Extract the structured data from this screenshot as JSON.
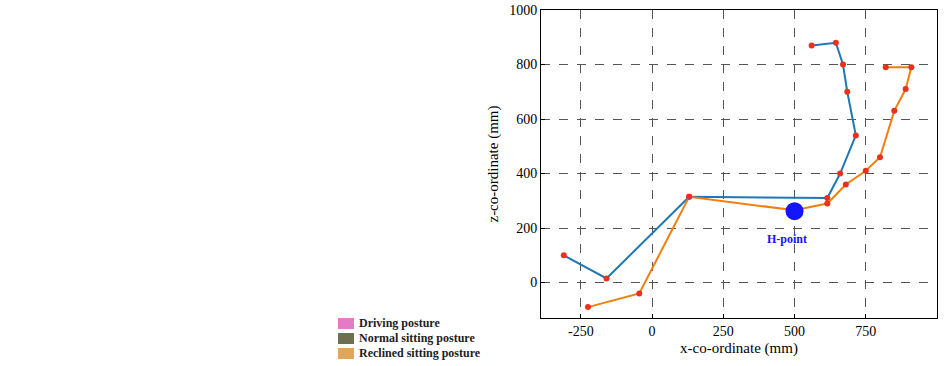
{
  "figure_legend": {
    "entries": [
      {
        "label": "Driving posture",
        "color": "#e27cc4"
      },
      {
        "label": "Normal sitting posture",
        "color": "#6e6e50"
      },
      {
        "label": "Reclined sitting posture",
        "color": "#e3a55a"
      }
    ]
  },
  "chart_data": {
    "type": "line",
    "x_label": "x-co-ordinate (mm)",
    "y_label": "z-co-ordinate (mm)",
    "xlim": [
      -390,
      1000
    ],
    "ylim": [
      -130,
      1000
    ],
    "xticks": [
      -250,
      0,
      250,
      500,
      750
    ],
    "yticks": [
      0,
      200,
      400,
      600,
      800,
      1000
    ],
    "grid": true,
    "series": [
      {
        "color": "#1f77b4",
        "marker": "circle",
        "x": [
          -310,
          -160,
          130,
          615,
          660,
          715,
          685,
          670,
          645,
          560
        ],
        "values": [
          100,
          15,
          315,
          310,
          400,
          540,
          700,
          800,
          880,
          870
        ]
      },
      {
        "color": "#f07f10",
        "marker": "circle",
        "x": [
          -225,
          -45,
          130,
          500,
          615,
          680,
          750,
          800,
          850,
          890,
          910,
          820
        ],
        "values": [
          -90,
          -40,
          315,
          265,
          290,
          360,
          410,
          460,
          630,
          710,
          790,
          790
        ]
      },
      {
        "type": "scatter",
        "color": "#1414ff",
        "marker": "circle",
        "x": [
          500
        ],
        "values": [
          262
        ]
      }
    ],
    "annotations": [
      {
        "text": "H-point",
        "x": 500,
        "y": 262
      }
    ]
  }
}
